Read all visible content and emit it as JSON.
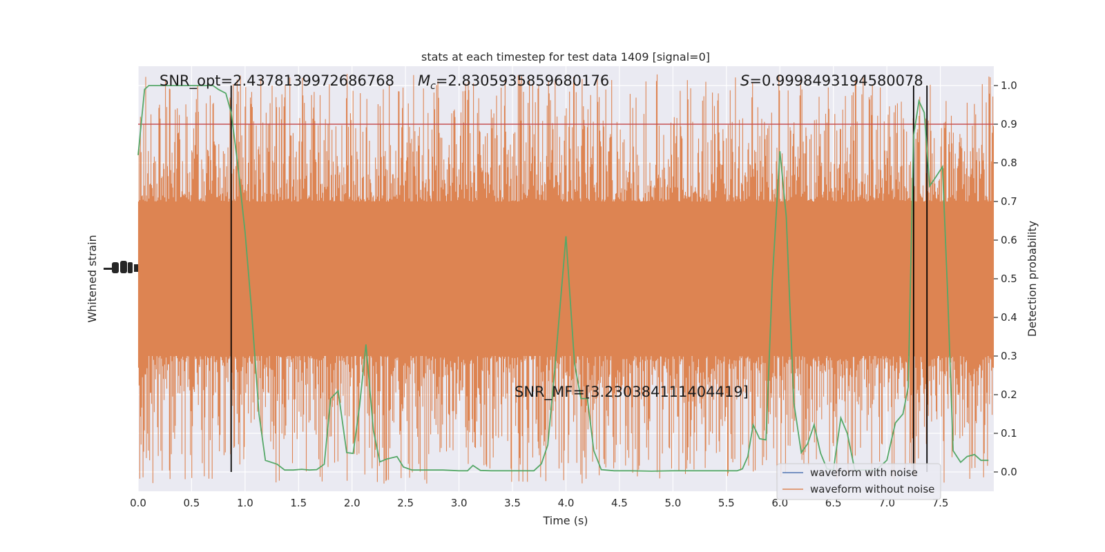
{
  "chart_data": {
    "type": "line",
    "title": "stats at each timestep for test data 1409 [signal=0]",
    "xlabel": "Time (s)",
    "ylabel_left": "Whitened strain",
    "ylabel_right": "Detection probability",
    "xlim": [
      0.0,
      8.0
    ],
    "ylim_right": [
      -0.05,
      1.05
    ],
    "x_ticks": [
      "0.0",
      "0.5",
      "1.0",
      "1.5",
      "2.0",
      "2.5",
      "3.0",
      "3.5",
      "4.0",
      "4.5",
      "5.0",
      "5.5",
      "6.0",
      "6.5",
      "7.0",
      "7.5"
    ],
    "y_ticks_right": [
      "0.0",
      "0.1",
      "0.2",
      "0.3",
      "0.4",
      "0.5",
      "0.6",
      "0.7",
      "0.8",
      "0.9",
      "1.0"
    ],
    "grid": true,
    "threshold": 0.9,
    "vertical_lines": [
      0.87,
      7.25,
      7.375
    ],
    "annotations": {
      "snr_opt": "SNR_opt=2.4378139972686768",
      "mc_symbol": "M",
      "mc_sub": "c",
      "mc_value": "=2.8305935859680176",
      "s_symbol": "S",
      "s_value": "=0.9998493194580078",
      "snr_mf": "SNR_MF=[3.230384111404419]"
    },
    "legend": {
      "position": "lower right",
      "entries": [
        "waveform with noise",
        "waveform without noise"
      ]
    },
    "series": [
      {
        "name": "waveform with noise",
        "color": "#4c72b0",
        "values": []
      },
      {
        "name": "waveform without noise",
        "color": "#dd8452",
        "band_center": 0.5,
        "band_half_width": 0.2,
        "spike_extent": 0.5
      },
      {
        "name": "detection probability",
        "color": "#55a868",
        "x": [
          0.0,
          0.06,
          0.1,
          0.2,
          0.4,
          0.6,
          0.7,
          0.75,
          0.82,
          0.87,
          0.93,
          1.0,
          1.06,
          1.13,
          1.19,
          1.3,
          1.37,
          1.45,
          1.53,
          1.6,
          1.67,
          1.74,
          1.8,
          1.87,
          1.95,
          2.01,
          2.07,
          2.13,
          2.2,
          2.26,
          2.32,
          2.42,
          2.48,
          2.56,
          2.7,
          2.85,
          3.0,
          3.08,
          3.13,
          3.2,
          3.3,
          3.45,
          3.6,
          3.7,
          3.77,
          3.83,
          3.9,
          4.0,
          4.08,
          4.14,
          4.2,
          4.26,
          4.33,
          4.45,
          4.6,
          4.8,
          5.0,
          5.1,
          5.25,
          5.4,
          5.6,
          5.65,
          5.7,
          5.75,
          5.81,
          5.87,
          5.93,
          6.0,
          6.06,
          6.13,
          6.2,
          6.26,
          6.32,
          6.38,
          6.44,
          6.5,
          6.57,
          6.63,
          6.7,
          6.8,
          6.9,
          7.0,
          7.08,
          7.15,
          7.2,
          7.25,
          7.3,
          7.35,
          7.4,
          7.45,
          7.52,
          7.57,
          7.62,
          7.69,
          7.75,
          7.82,
          7.88,
          7.95
        ],
        "values": [
          0.82,
          0.99,
          1.0,
          1.0,
          1.0,
          1.0,
          1.0,
          0.99,
          0.98,
          0.93,
          0.8,
          0.62,
          0.42,
          0.15,
          0.03,
          0.02,
          0.005,
          0.005,
          0.007,
          0.005,
          0.006,
          0.02,
          0.19,
          0.21,
          0.05,
          0.048,
          0.17,
          0.33,
          0.107,
          0.026,
          0.033,
          0.04,
          0.013,
          0.005,
          0.005,
          0.005,
          0.003,
          0.003,
          0.017,
          0.004,
          0.003,
          0.003,
          0.003,
          0.003,
          0.021,
          0.07,
          0.28,
          0.61,
          0.28,
          0.19,
          0.19,
          0.055,
          0.006,
          0.003,
          0.003,
          0.002,
          0.003,
          0.003,
          0.003,
          0.003,
          0.003,
          0.008,
          0.04,
          0.122,
          0.086,
          0.083,
          0.5,
          0.83,
          0.66,
          0.18,
          0.05,
          0.073,
          0.122,
          0.049,
          0.008,
          0.005,
          0.14,
          0.1,
          0.005,
          0.005,
          0.005,
          0.03,
          0.127,
          0.15,
          0.22,
          0.87,
          0.96,
          0.93,
          0.74,
          0.76,
          0.79,
          0.45,
          0.055,
          0.025,
          0.04,
          0.045,
          0.03,
          0.03
        ]
      }
    ]
  }
}
